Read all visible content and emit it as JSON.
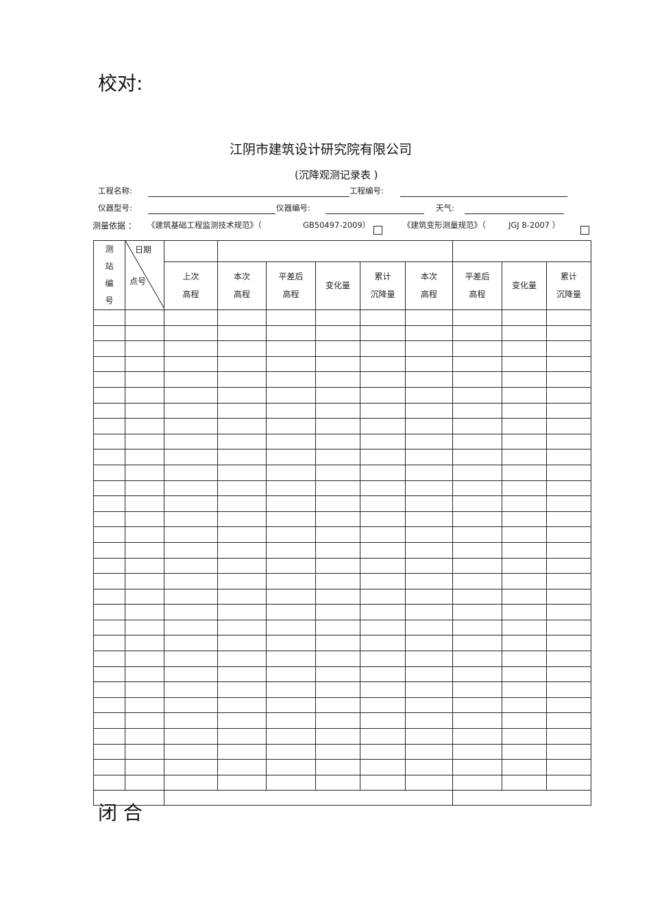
{
  "header_top": "校对:",
  "company": "江阴市建筑设计研究院有限公司",
  "form_title": "(沉降观测记录表 )",
  "fields": {
    "project_name": "工程名称:",
    "project_no": "工程编号:",
    "instrument_model": "仪器型号:",
    "instrument_no": "仪器编号:",
    "weather": "天气:",
    "basis_label": "测量依据 ：",
    "standard1": "《建筑基础工程监测技术规范》（",
    "standard1_code": "GB50497-2009）",
    "standard2": "《建筑变形测量规范》（",
    "standard2_code": "JGJ 8-2007 ）"
  },
  "table": {
    "station_no": [
      "测",
      "站",
      "编",
      "号"
    ],
    "date": "日期",
    "point_no": "点号",
    "headers": [
      [
        "上次",
        "高程"
      ],
      [
        "本次",
        "高程"
      ],
      [
        "平差后",
        "高程"
      ],
      [
        "变化量",
        ""
      ],
      [
        "累计",
        "沉降量"
      ],
      [
        "本次",
        "高程"
      ],
      [
        "平差后",
        "高程"
      ],
      [
        "变化量",
        ""
      ],
      [
        "累计",
        "沉降量"
      ]
    ]
  },
  "closure": "闭   合"
}
